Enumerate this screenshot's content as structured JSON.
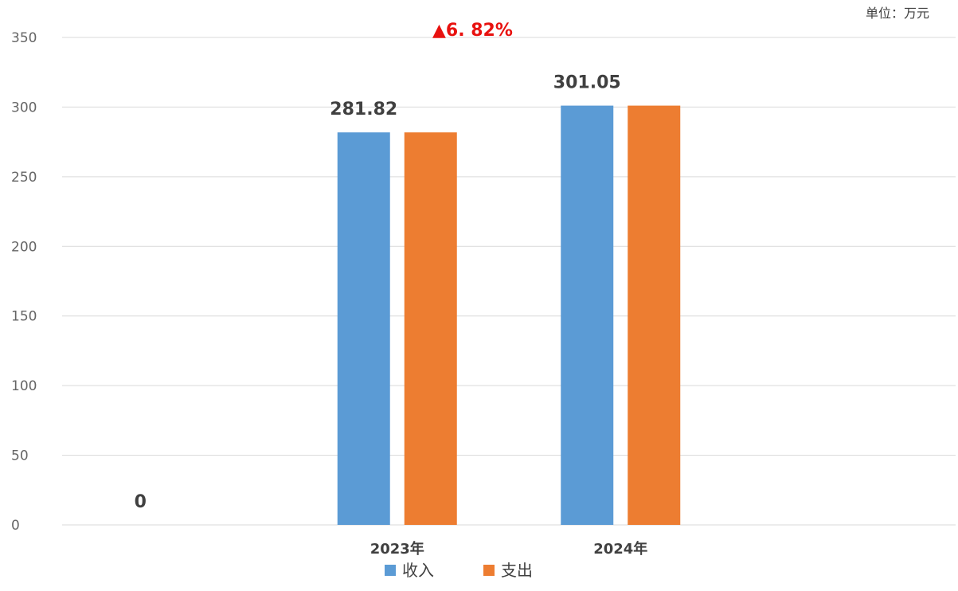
{
  "chart_data": {
    "type": "bar",
    "unit_label": "单位：万元",
    "growth_annotation": "▲6. 82%",
    "categories": [
      "",
      "2023年",
      "2024年",
      ""
    ],
    "series": [
      {
        "name": "收入",
        "color": "#5b9bd5",
        "values": [
          0,
          281.82,
          301.05,
          0
        ]
      },
      {
        "name": "支出",
        "color": "#ed7d31",
        "values": [
          0,
          281.82,
          301.05,
          0
        ]
      }
    ],
    "data_labels": [
      {
        "text": "0",
        "category_index": 0,
        "value": 0
      },
      {
        "text": "281.82",
        "category_index": 1,
        "value": 281.82
      },
      {
        "text": "301.05",
        "category_index": 2,
        "value": 301.05
      }
    ],
    "y_ticks": [
      "0",
      "50",
      "100",
      "150",
      "200",
      "250",
      "300",
      "350"
    ],
    "ylim": [
      0,
      350
    ],
    "grid": true,
    "legend_position": "bottom"
  }
}
